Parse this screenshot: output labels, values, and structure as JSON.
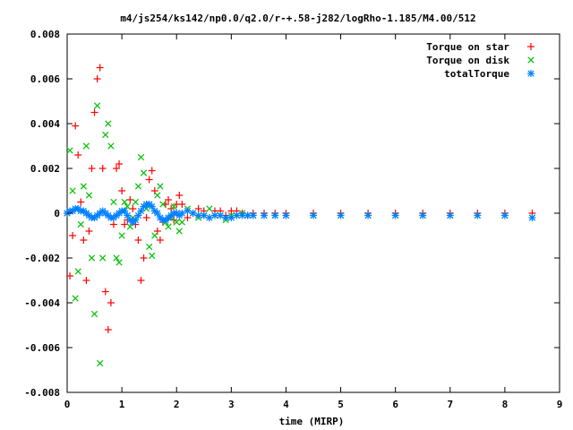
{
  "chart_data": {
    "type": "scatter",
    "title": "m4/js254/ks142/np0.0/q2.0/r-+.58-j282/logRho-1.185/M4.00/512",
    "xlabel": "time (MIRP)",
    "ylabel": "",
    "xlim": [
      0,
      9
    ],
    "ylim": [
      -0.008,
      0.008
    ],
    "xticks": [
      "0",
      "1",
      "2",
      "3",
      "4",
      "5",
      "6",
      "7",
      "8",
      "9"
    ],
    "yticks": [
      "0.008",
      "0.006",
      "0.004",
      "0.002",
      "0",
      "-0.002",
      "-0.004",
      "-0.006",
      "-0.008"
    ],
    "grid": false,
    "legend_position": "top-right",
    "series": [
      {
        "name": "Torque on star",
        "marker": "plus",
        "color": "#ff0000",
        "x": [
          0.0,
          0.05,
          0.1,
          0.15,
          0.2,
          0.25,
          0.3,
          0.35,
          0.4,
          0.45,
          0.5,
          0.55,
          0.6,
          0.65,
          0.7,
          0.75,
          0.8,
          0.85,
          0.9,
          0.95,
          1.0,
          1.05,
          1.1,
          1.15,
          1.2,
          1.25,
          1.3,
          1.35,
          1.4,
          1.45,
          1.5,
          1.55,
          1.6,
          1.65,
          1.7,
          1.75,
          1.8,
          1.85,
          1.9,
          1.95,
          2.0,
          2.05,
          2.1,
          2.2,
          2.3,
          2.4,
          2.5,
          2.6,
          2.7,
          2.8,
          2.9,
          3.0,
          3.1,
          3.2,
          3.3,
          3.4,
          3.6,
          3.8,
          4.0,
          4.5,
          5.0,
          5.5,
          6.0,
          6.5,
          7.0,
          7.5,
          8.0,
          8.5
        ],
        "y": [
          0.0,
          -0.0028,
          -0.001,
          0.0039,
          0.0026,
          0.0005,
          -0.0012,
          -0.003,
          -0.0008,
          0.002,
          0.0045,
          0.006,
          0.0065,
          0.002,
          -0.0035,
          -0.0052,
          -0.004,
          -0.0005,
          0.002,
          0.0022,
          0.001,
          -0.0005,
          -0.0003,
          0.0006,
          0.0002,
          -0.0005,
          -0.0012,
          -0.003,
          -0.002,
          -0.0002,
          0.0015,
          0.0019,
          0.001,
          -0.0008,
          -0.0012,
          -0.0004,
          0.0004,
          0.0006,
          0.0002,
          -0.0003,
          0.0004,
          0.0008,
          0.0004,
          -0.0002,
          0.0,
          0.0002,
          0.0001,
          -0.0002,
          0.0001,
          0.0001,
          -0.0001,
          0.0001,
          0.0001,
          0.0,
          -0.0001,
          0.0,
          0.0,
          0.0,
          0.0,
          0.0,
          0.0,
          0.0,
          0.0,
          0.0,
          0.0,
          0.0,
          0.0,
          0.0
        ]
      },
      {
        "name": "Torque on disk",
        "marker": "cross",
        "color": "#00c000",
        "x": [
          0.0,
          0.05,
          0.1,
          0.15,
          0.2,
          0.25,
          0.3,
          0.35,
          0.4,
          0.45,
          0.5,
          0.55,
          0.6,
          0.65,
          0.7,
          0.75,
          0.8,
          0.85,
          0.9,
          0.95,
          1.0,
          1.05,
          1.1,
          1.15,
          1.2,
          1.25,
          1.3,
          1.35,
          1.4,
          1.45,
          1.5,
          1.55,
          1.6,
          1.65,
          1.7,
          1.75,
          1.8,
          1.85,
          1.9,
          1.95,
          2.0,
          2.05,
          2.1,
          2.2,
          2.3,
          2.4,
          2.5,
          2.6,
          2.7,
          2.8,
          2.9,
          3.0,
          3.1,
          3.2,
          3.3,
          3.4,
          3.6,
          3.8,
          4.0,
          4.5,
          5.0,
          5.5,
          6.0,
          6.5,
          7.0,
          7.5,
          8.0,
          8.5
        ],
        "y": [
          0.0,
          0.0028,
          0.001,
          -0.0038,
          -0.0026,
          -0.0005,
          0.0012,
          0.003,
          0.0008,
          -0.002,
          -0.0045,
          0.0048,
          -0.0067,
          -0.002,
          0.0035,
          0.004,
          0.003,
          0.0005,
          -0.002,
          -0.0022,
          -0.001,
          0.0005,
          0.0003,
          -0.0006,
          -0.0002,
          0.0005,
          0.0012,
          0.0025,
          0.0018,
          0.0002,
          -0.0015,
          -0.0019,
          -0.001,
          0.0008,
          0.0012,
          0.0004,
          -0.0004,
          -0.0006,
          -0.0002,
          0.0003,
          -0.0004,
          -0.0008,
          -0.0004,
          0.0002,
          0.0,
          -0.0002,
          -0.0001,
          0.0002,
          -0.0001,
          -0.0001,
          -0.0003,
          -0.0001,
          -0.0001,
          0.0,
          -0.0001,
          -0.0001,
          -0.0001,
          -0.0001,
          -0.0001,
          -0.0001,
          -0.0001,
          -0.0001,
          -0.0001,
          -0.0001,
          -0.0001,
          -0.0001,
          -0.0001,
          -0.0002
        ]
      },
      {
        "name": "totalTorque",
        "marker": "star",
        "color": "#0080ff",
        "x": [
          0.0,
          0.05,
          0.1,
          0.15,
          0.2,
          0.25,
          0.3,
          0.35,
          0.4,
          0.45,
          0.5,
          0.55,
          0.6,
          0.65,
          0.7,
          0.75,
          0.8,
          0.85,
          0.9,
          0.95,
          1.0,
          1.05,
          1.1,
          1.15,
          1.2,
          1.25,
          1.3,
          1.35,
          1.4,
          1.45,
          1.5,
          1.55,
          1.6,
          1.65,
          1.7,
          1.75,
          1.8,
          1.85,
          1.9,
          1.95,
          2.0,
          2.05,
          2.1,
          2.2,
          2.3,
          2.4,
          2.5,
          2.6,
          2.7,
          2.8,
          2.9,
          3.0,
          3.1,
          3.2,
          3.3,
          3.4,
          3.6,
          3.8,
          4.0,
          4.5,
          5.0,
          5.5,
          6.0,
          6.5,
          7.0,
          7.5,
          8.0,
          8.5
        ],
        "y": [
          0.0,
          0.0001,
          0.0001,
          0.0002,
          0.0002,
          0.0001,
          0.0001,
          0.0,
          -0.0001,
          -0.0002,
          -0.0002,
          -0.0001,
          0.0,
          0.0001,
          0.0,
          -0.0001,
          -0.0002,
          -0.0002,
          -0.0001,
          0.0,
          0.0001,
          0.0001,
          -0.0001,
          -0.0003,
          -0.0004,
          -0.0003,
          -0.0001,
          0.0001,
          0.0003,
          0.0004,
          0.0004,
          0.0003,
          0.0001,
          0.0,
          -0.0002,
          -0.0003,
          -0.0003,
          -0.0002,
          -0.0001,
          0.0,
          0.0,
          -0.0001,
          0.0,
          0.0001,
          0.0,
          -0.0001,
          -0.0001,
          -0.0002,
          -0.0001,
          -0.0001,
          -0.0002,
          -0.0002,
          -0.0001,
          -0.0001,
          -0.0001,
          -0.0001,
          -0.0001,
          -0.0001,
          -0.0001,
          -0.0001,
          -0.0001,
          -0.0001,
          -0.0001,
          -0.0001,
          -0.0001,
          -0.0001,
          -0.0001,
          -0.0002
        ]
      }
    ]
  }
}
